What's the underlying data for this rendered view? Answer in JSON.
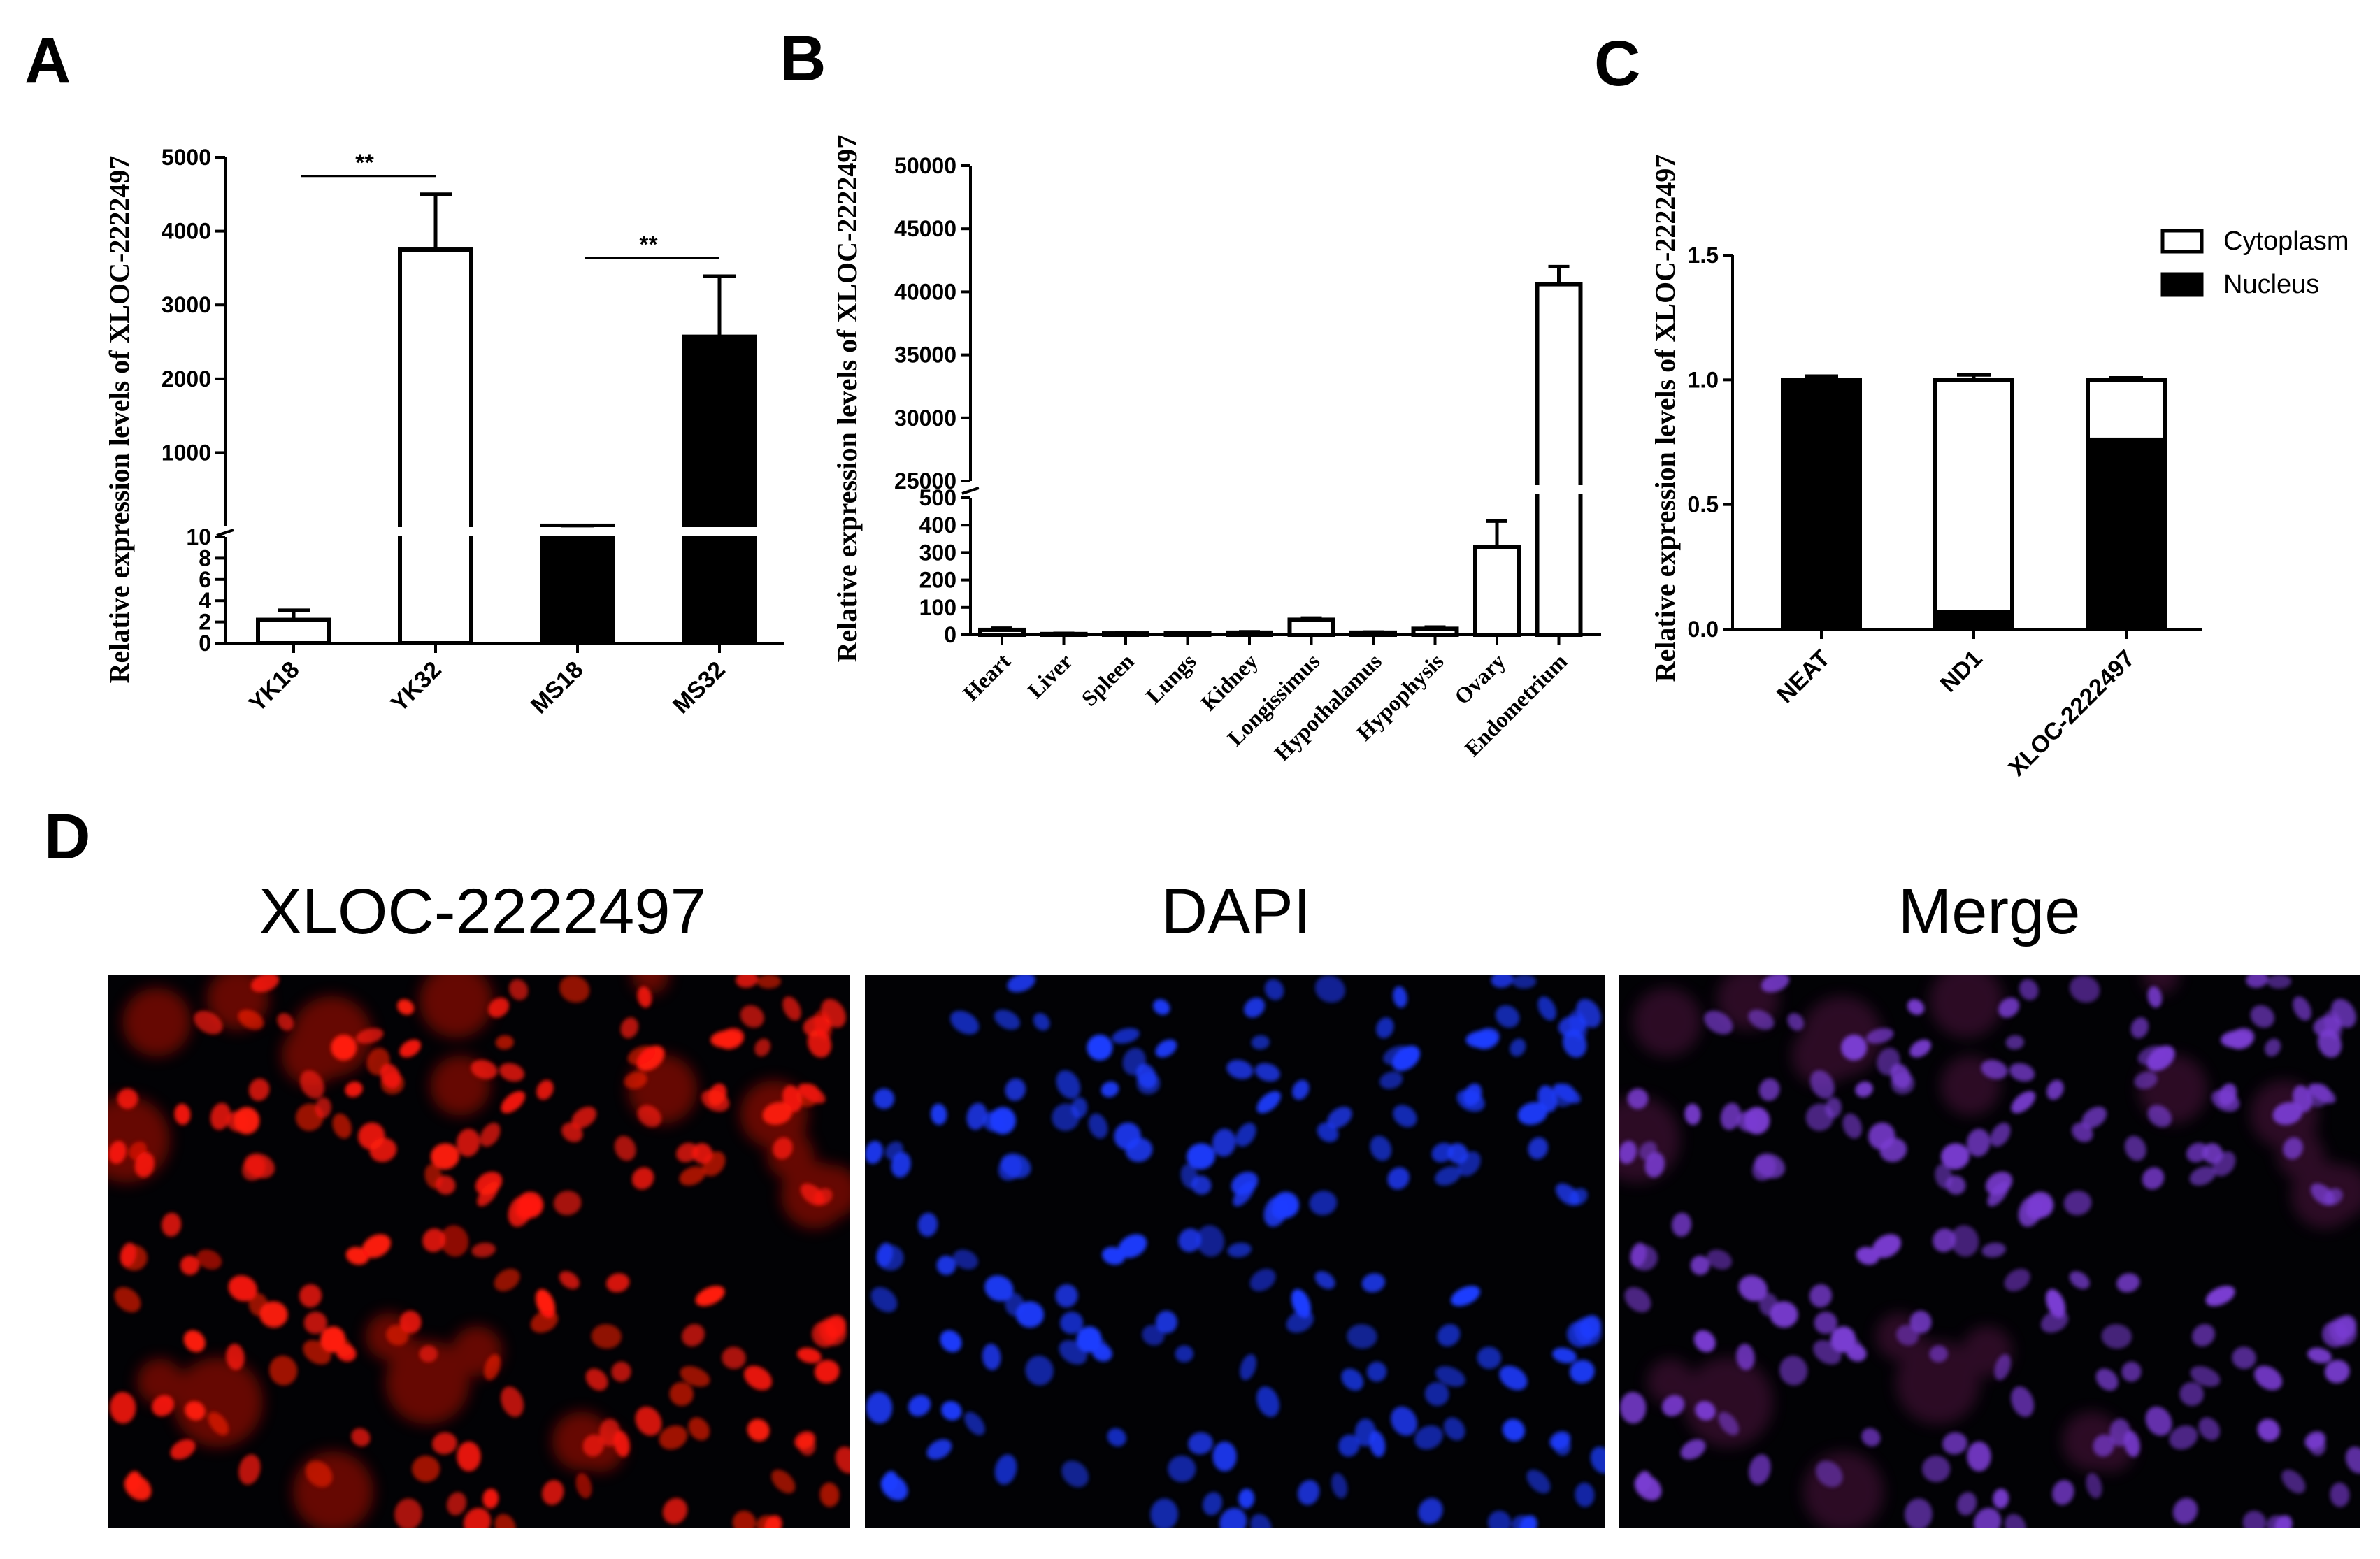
{
  "panels": {
    "A": "A",
    "B": "B",
    "C": "C",
    "D": "D"
  },
  "chart_data": [
    {
      "panel": "A",
      "type": "bar",
      "ylabel": "Relative expression levels of XLOC-2222497",
      "categories": [
        "YK18",
        "YK32",
        "MS18",
        "MS32"
      ],
      "values": [
        2.2,
        3750,
        10.5,
        2570
      ],
      "errors": [
        0.9,
        750,
        0.9,
        820
      ],
      "fills": [
        "#ffffff",
        "#ffffff",
        "#000000",
        "#000000"
      ],
      "y_axis_break": {
        "lower_range": [
          0,
          10
        ],
        "upper_range": [
          10,
          5000
        ],
        "lower_ticks": [
          "0",
          "2",
          "4",
          "6",
          "8",
          "10"
        ],
        "upper_ticks": [
          "1000",
          "2000",
          "3000",
          "4000",
          "5000"
        ]
      },
      "significance": [
        {
          "from": 0,
          "to": 1,
          "label": "**"
        },
        {
          "from": 2,
          "to": 3,
          "label": "**"
        }
      ]
    },
    {
      "panel": "B",
      "type": "bar",
      "ylabel": "Relative expression levels of XLOC-2222497",
      "categories": [
        "Heart",
        "Liver",
        "Spleen",
        "Lungs",
        "Kidney",
        "Longissimus",
        "Hypothalamus",
        "Hypophysis",
        "Ovary",
        "Endometrium"
      ],
      "values": [
        18,
        3,
        5,
        6,
        8,
        55,
        8,
        22,
        320,
        40600
      ],
      "errors": [
        6,
        2,
        2,
        2,
        3,
        6,
        2,
        6,
        95,
        1400
      ],
      "fills": [
        "#ffffff",
        "#ffffff",
        "#ffffff",
        "#ffffff",
        "#ffffff",
        "#ffffff",
        "#ffffff",
        "#ffffff",
        "#ffffff",
        "#ffffff"
      ],
      "y_axis_break": {
        "lower_range": [
          0,
          500
        ],
        "upper_range": [
          25000,
          50000
        ],
        "lower_ticks": [
          "0",
          "100",
          "200",
          "300",
          "400",
          "500"
        ],
        "upper_ticks": [
          "25000",
          "30000",
          "35000",
          "40000",
          "45000",
          "50000"
        ]
      }
    },
    {
      "panel": "C",
      "type": "bar",
      "stacked": true,
      "ylabel": "Relative expression levels of XLOC-2222497",
      "categories": [
        "NEAT",
        "ND1",
        "XLOC-2222497"
      ],
      "ylim": [
        0,
        1.5
      ],
      "yticks": [
        "0.0",
        "0.5",
        "1.0",
        "1.5"
      ],
      "legend_position": "top-right",
      "series": [
        {
          "name": "Nucleus",
          "values": [
            1.0,
            0.07,
            0.76
          ],
          "errors": [
            0.015,
            0.015,
            0.01
          ],
          "color": "#000000"
        },
        {
          "name": "Cytoplasm",
          "values": [
            0.0,
            0.93,
            0.24
          ],
          "errors": [
            0.0,
            0.02,
            0.008
          ],
          "color": "#ffffff"
        }
      ]
    }
  ],
  "micrographs": {
    "titles": [
      "XLOC-2222497",
      "DAPI",
      "Merge"
    ],
    "stain_colors": [
      "#ff1a0a",
      "#1e3cff",
      "#7a3cd2"
    ]
  }
}
